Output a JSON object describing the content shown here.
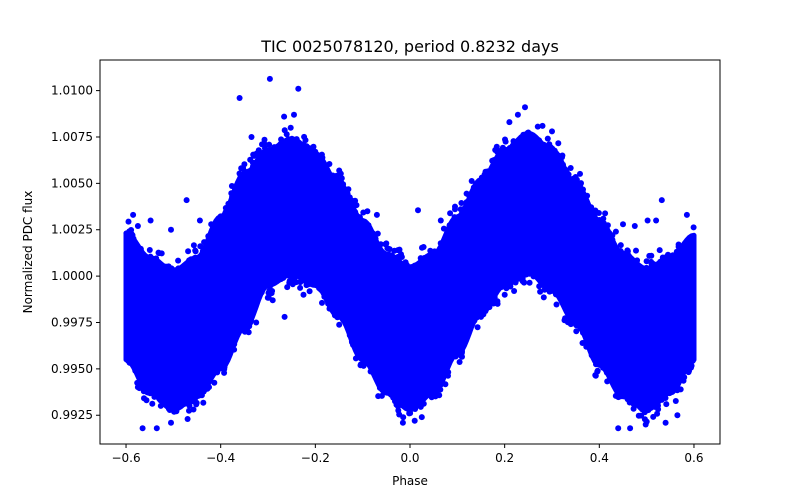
{
  "chart_data": {
    "type": "scatter",
    "title": "TIC 0025078120, period 0.8232 days",
    "xlabel": "Phase",
    "ylabel": "Normalized PDC flux",
    "xlim": [
      -0.655,
      0.655
    ],
    "ylim": [
      0.99095,
      1.01165
    ],
    "xticks": [
      -0.6,
      -0.4,
      -0.2,
      0.0,
      0.2,
      0.4,
      0.6
    ],
    "xtick_labels": [
      "−0.6",
      "−0.4",
      "−0.2",
      "0.0",
      "0.2",
      "0.4",
      "0.6"
    ],
    "yticks": [
      0.9925,
      0.995,
      0.9975,
      1.0,
      1.0025,
      1.005,
      1.0075,
      1.01
    ],
    "ytick_labels": [
      "0.9925",
      "0.9950",
      "0.9975",
      "1.0000",
      "1.0025",
      "1.0050",
      "1.0075",
      "1.0100"
    ],
    "grid": false,
    "legend": null,
    "marker_color": "#0000ff",
    "marker": "filled circle",
    "series": [
      {
        "name": "phased light curve (dense band envelope)",
        "phase": [
          -0.6,
          -0.55,
          -0.5,
          -0.45,
          -0.4,
          -0.35,
          -0.3,
          -0.25,
          -0.2,
          -0.15,
          -0.1,
          -0.05,
          0.0,
          0.05,
          0.1,
          0.15,
          0.2,
          0.25,
          0.3,
          0.35,
          0.4,
          0.45,
          0.5,
          0.55,
          0.6
        ],
        "upper_flux": [
          1.0023,
          1.001,
          1.0003,
          1.001,
          1.0032,
          1.0055,
          1.0068,
          1.0074,
          1.0066,
          1.005,
          1.003,
          1.0012,
          1.0005,
          1.0012,
          1.0032,
          1.0052,
          1.0068,
          1.0077,
          1.0068,
          1.005,
          1.003,
          1.0012,
          1.0004,
          1.001,
          1.0022
        ],
        "lower_flux": [
          0.9955,
          0.9937,
          0.9928,
          0.9935,
          0.995,
          0.9972,
          0.9995,
          1.0001,
          0.9995,
          0.9978,
          0.9955,
          0.9937,
          0.9928,
          0.9937,
          0.9958,
          0.998,
          0.9995,
          1.0002,
          0.9992,
          0.9975,
          0.9952,
          0.9935,
          0.9928,
          0.9937,
          0.9955
        ]
      },
      {
        "name": "outliers",
        "points": [
          [
            -0.296,
            1.01063
          ],
          [
            -0.236,
            1.0101
          ],
          [
            -0.36,
            1.0096
          ],
          [
            -0.266,
            1.0086
          ],
          [
            -0.245,
            1.0087
          ],
          [
            -0.335,
            1.0075
          ],
          [
            -0.252,
            1.008
          ],
          [
            -0.2,
            1.0067
          ],
          [
            -0.472,
            1.0041
          ],
          [
            -0.444,
            1.003
          ],
          [
            -0.548,
            1.003
          ],
          [
            -0.585,
            1.0033
          ],
          [
            -0.505,
            1.0025
          ],
          [
            -0.575,
            1.0027
          ],
          [
            -0.42,
            1.0028
          ],
          [
            -0.405,
            1.002
          ],
          [
            -0.175,
            1.0034
          ],
          [
            -0.14,
            1.0031
          ],
          [
            -0.345,
            0.9975
          ],
          [
            -0.325,
            0.9975
          ],
          [
            -0.29,
            0.9987
          ],
          [
            -0.265,
            0.9978
          ],
          [
            -0.225,
            0.999
          ],
          [
            -0.565,
            0.9918
          ],
          [
            -0.535,
            0.9918
          ],
          [
            -0.505,
            0.9921
          ],
          [
            -0.47,
            0.9923
          ],
          [
            -0.09,
            1.0035
          ],
          [
            -0.07,
            1.0033
          ],
          [
            0.017,
            1.00355
          ],
          [
            0.065,
            1.003
          ],
          [
            0.095,
            1.0036
          ],
          [
            -0.015,
            0.9921
          ],
          [
            0.01,
            0.9922
          ],
          [
            0.025,
            0.9924
          ],
          [
            0.21,
            1.0083
          ],
          [
            0.228,
            1.0087
          ],
          [
            0.243,
            1.0091
          ],
          [
            0.28,
            1.0081
          ],
          [
            0.3,
            1.0078
          ],
          [
            0.18,
            1.0068
          ],
          [
            0.322,
            1.0065
          ],
          [
            0.15,
            0.9978
          ],
          [
            0.135,
            0.9982
          ],
          [
            0.185,
            0.9985
          ],
          [
            0.2,
            0.999
          ],
          [
            0.1,
            0.9968
          ],
          [
            0.335,
            0.9984
          ],
          [
            0.355,
            0.9976
          ],
          [
            0.532,
            1.0041
          ],
          [
            0.502,
            1.003
          ],
          [
            0.52,
            1.003
          ],
          [
            0.475,
            1.0027
          ],
          [
            0.585,
            1.0033
          ],
          [
            0.435,
            1.0024
          ],
          [
            0.45,
            1.0028
          ],
          [
            0.44,
            0.9918
          ],
          [
            0.465,
            0.9918
          ],
          [
            0.498,
            0.992
          ],
          [
            0.54,
            0.9921
          ],
          [
            0.565,
            0.9925
          ]
        ]
      }
    ]
  }
}
